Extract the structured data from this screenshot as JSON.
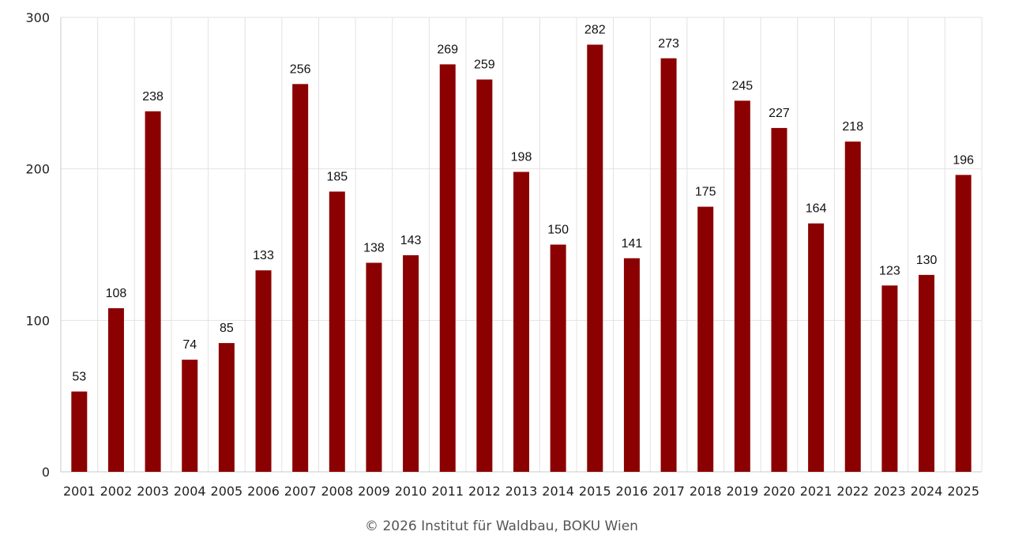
{
  "chart_data": {
    "type": "bar",
    "categories": [
      "2001",
      "2002",
      "2003",
      "2004",
      "2005",
      "2006",
      "2007",
      "2008",
      "2009",
      "2010",
      "2011",
      "2012",
      "2013",
      "2014",
      "2015",
      "2016",
      "2017",
      "2018",
      "2019",
      "2020",
      "2021",
      "2022",
      "2023",
      "2024",
      "2025"
    ],
    "values": [
      53,
      108,
      238,
      74,
      85,
      133,
      256,
      185,
      138,
      143,
      269,
      259,
      198,
      150,
      282,
      141,
      273,
      175,
      245,
      227,
      164,
      218,
      123,
      130,
      196
    ],
    "ylim": [
      0,
      300
    ],
    "yticks": [
      0,
      100,
      200,
      300
    ],
    "grid": true,
    "bar_color": "#8b0000",
    "data_labels": true
  },
  "credit": "© 2026 Institut für Waldbau, BOKU Wien"
}
